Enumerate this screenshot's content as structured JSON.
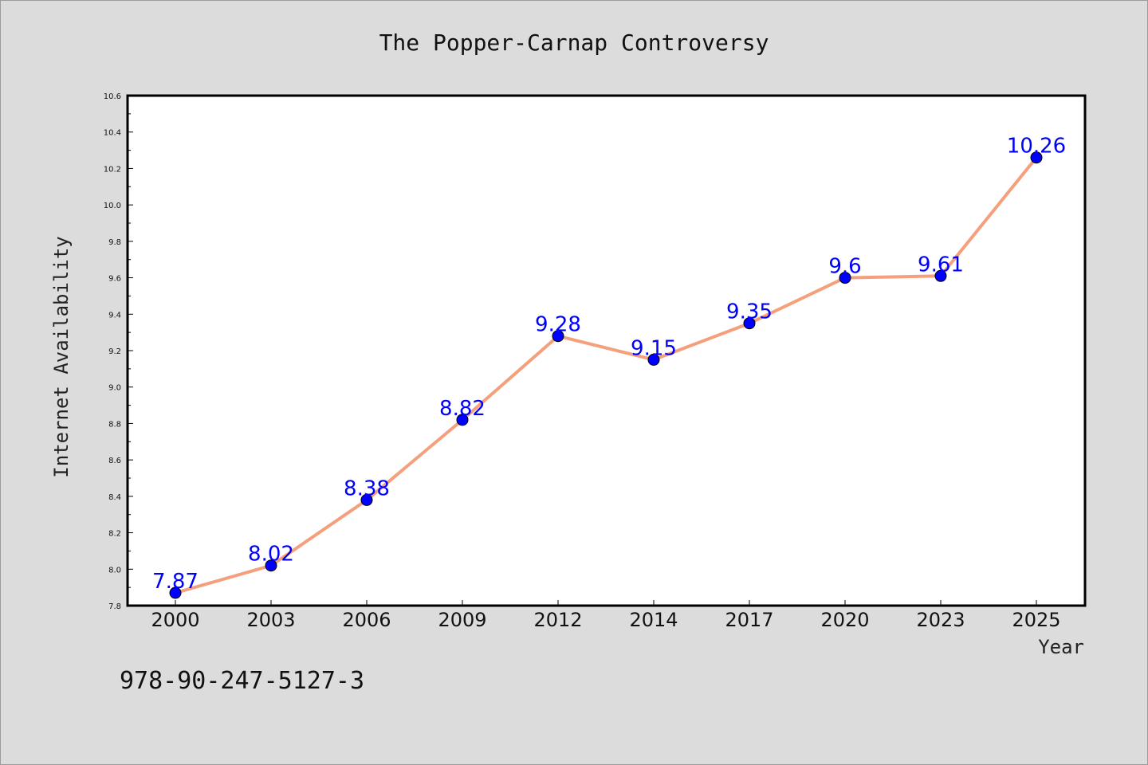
{
  "chart_data": {
    "type": "line",
    "title": "The Popper-Carnap Controversy",
    "xlabel": "Year",
    "ylabel": "Internet Availability",
    "categories": [
      "2000",
      "2003",
      "2006",
      "2009",
      "2012",
      "2014",
      "2017",
      "2020",
      "2023",
      "2025"
    ],
    "series": [
      {
        "values": [
          7.87,
          8.02,
          8.38,
          8.82,
          9.28,
          9.15,
          9.35,
          9.6,
          9.61,
          10.26
        ],
        "data_labels": [
          "7.87",
          "8.02",
          "8.38",
          "8.82",
          "9.28",
          "9.15",
          "9.35",
          "9.6",
          "9.61",
          "10.26"
        ],
        "line_color": "#f4a07c",
        "marker_color": "#0000ff"
      }
    ],
    "ylim": [
      7.8,
      10.6
    ],
    "yticks": [
      "7.8",
      "8.0",
      "8.2",
      "8.4",
      "8.6",
      "8.8",
      "9.0",
      "9.2",
      "9.4",
      "9.6",
      "9.8",
      "10.0",
      "10.2",
      "10.4",
      "10.6"
    ],
    "grid": false,
    "legend": "none"
  },
  "footnote": "978-90-247-5127-3",
  "colors": {
    "background": "#dcdcdc",
    "plot_background": "#ffffff",
    "label_color": "#0000ff"
  }
}
